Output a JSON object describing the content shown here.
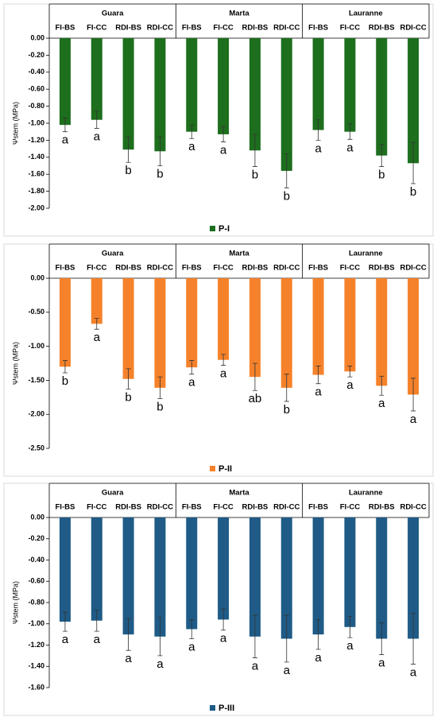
{
  "chart_data": [
    {
      "type": "bar",
      "ylabel": "Ψstem (MPa)",
      "groups": [
        "Guara",
        "Marta",
        "Lauranne"
      ],
      "categories": [
        "FI-BS",
        "FI-CC",
        "RDI-BS",
        "RDI-CC",
        "FI-BS",
        "FI-CC",
        "RDI-BS",
        "RDI-CC",
        "FI-BS",
        "FI-CC",
        "RDI-BS",
        "RDI-CC"
      ],
      "series": [
        {
          "name": "P-I",
          "color": "#1d6e1d",
          "values": [
            -1.02,
            -0.96,
            -1.31,
            -1.33,
            -1.1,
            -1.13,
            -1.32,
            -1.56,
            -1.08,
            -1.1,
            -1.38,
            -1.47
          ],
          "errors": [
            0.08,
            0.1,
            0.15,
            0.17,
            0.08,
            0.09,
            0.19,
            0.2,
            0.12,
            0.09,
            0.13,
            0.24
          ],
          "annotations": [
            "a",
            "a",
            "b",
            "b",
            "a",
            "a",
            "b",
            "b",
            "a",
            "a",
            "b",
            "b"
          ]
        }
      ],
      "ylim": [
        -2.0,
        0
      ],
      "yticks": [
        {
          "value": 0,
          "label": "0.00"
        },
        {
          "value": -0.2,
          "label": "-0.20"
        },
        {
          "value": -0.4,
          "label": "-0.40"
        },
        {
          "value": -0.6,
          "label": "-0.60"
        },
        {
          "value": -0.8,
          "label": "-0.80"
        },
        {
          "value": -1.0,
          "label": "-1.00"
        },
        {
          "value": -1.2,
          "label": "-1.20"
        },
        {
          "value": -1.4,
          "label": "-1.40"
        },
        {
          "value": -1.6,
          "label": "-1.60"
        },
        {
          "value": -1.8,
          "label": "-1.80"
        },
        {
          "value": -2.0,
          "label": "-2.00"
        }
      ],
      "legend": "bottom"
    },
    {
      "type": "bar",
      "ylabel": "Ψstem (MPa)",
      "groups": [
        "Guara",
        "Marta",
        "Lauranne"
      ],
      "categories": [
        "FI-BS",
        "FI-CC",
        "RDI-BS",
        "RDI-CC",
        "FI-BS",
        "FI-CC",
        "RDI-BS",
        "RDI-CC",
        "FI-BS",
        "FI-CC",
        "RDI-BS",
        "RDI-CC"
      ],
      "series": [
        {
          "name": "P-II",
          "color": "#f5822a",
          "values": [
            -1.3,
            -0.67,
            -1.48,
            -1.61,
            -1.31,
            -1.2,
            -1.45,
            -1.61,
            -1.42,
            -1.37,
            -1.58,
            -1.71
          ],
          "errors": [
            0.09,
            0.08,
            0.15,
            0.16,
            0.1,
            0.08,
            0.2,
            0.2,
            0.13,
            0.08,
            0.14,
            0.24
          ],
          "annotations": [
            "b",
            "a",
            "b",
            "b",
            "a",
            "a",
            "ab",
            "b",
            "a",
            "a",
            "a",
            "a"
          ]
        }
      ],
      "ylim": [
        -2.5,
        0
      ],
      "yticks": [
        {
          "value": 0,
          "label": "0.00"
        },
        {
          "value": -0.5,
          "label": "-0.50"
        },
        {
          "value": -1.0,
          "label": "-1.00"
        },
        {
          "value": -1.5,
          "label": "-1.50"
        },
        {
          "value": -2.0,
          "label": "-2.00"
        },
        {
          "value": -2.5,
          "label": "-2.50"
        }
      ],
      "legend": "bottom"
    },
    {
      "type": "bar",
      "ylabel": "Ψstem (MPa)",
      "groups": [
        "Guara",
        "Marta",
        "Lauranne"
      ],
      "categories": [
        "FI-BS",
        "FI-CC",
        "RDI-BS",
        "RDI-CC",
        "FI-BS",
        "FI-CC",
        "RDI-BS",
        "RDI-CC",
        "FI-BS",
        "FI-CC",
        "RDI-BS",
        "RDI-CC"
      ],
      "series": [
        {
          "name": "P-III",
          "color": "#1f5b86",
          "values": [
            -0.98,
            -0.97,
            -1.1,
            -1.12,
            -1.05,
            -0.96,
            -1.12,
            -1.14,
            -1.1,
            -1.03,
            -1.14,
            -1.14
          ],
          "errors": [
            0.09,
            0.1,
            0.15,
            0.18,
            0.09,
            0.1,
            0.2,
            0.22,
            0.14,
            0.1,
            0.15,
            0.24
          ],
          "annotations": [
            "a",
            "a",
            "a",
            "a",
            "a",
            "a",
            "a",
            "a",
            "a",
            "a",
            "a",
            "a"
          ]
        }
      ],
      "ylim": [
        -1.6,
        0
      ],
      "yticks": [
        {
          "value": 0,
          "label": "0.00"
        },
        {
          "value": -0.2,
          "label": "-0.20"
        },
        {
          "value": -0.4,
          "label": "-0.40"
        },
        {
          "value": -0.6,
          "label": "-0.60"
        },
        {
          "value": -0.8,
          "label": "-0.80"
        },
        {
          "value": -1.0,
          "label": "-1.00"
        },
        {
          "value": -1.2,
          "label": "-1.20"
        },
        {
          "value": -1.4,
          "label": "-1.40"
        },
        {
          "value": -1.6,
          "label": "-1.60"
        }
      ],
      "legend": "bottom"
    }
  ]
}
